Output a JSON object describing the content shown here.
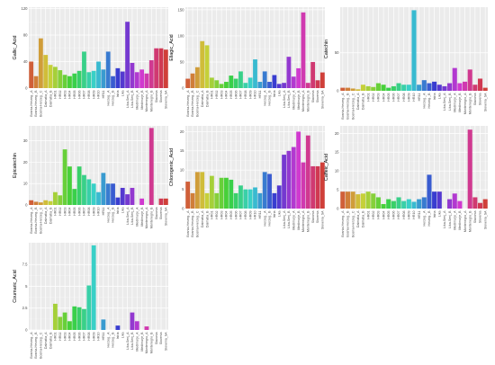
{
  "categories": [
    "Bosnia-Herzeg._A",
    "Bosnia-Herzeg._B",
    "Bosnia-Herzeg._C",
    "Dalmatia_A",
    "Dalmatia_B",
    "HR01",
    "HR02",
    "HR03",
    "HR04",
    "HR05",
    "HR06",
    "HR07",
    "HR08",
    "HR09",
    "HR10",
    "HR11",
    "Herzeg._A",
    "Herzeg._B",
    "Istria",
    "Lika",
    "Lika-Senj_A",
    "Lika-Senj_B",
    "Medimurje_A",
    "Medimurje_B",
    "Montenegro_A",
    "Montenegro_B",
    "Slavonia",
    "Slovenia",
    "Slovenia_SA"
  ],
  "chart_data": [
    {
      "type": "bar",
      "ylabel": "Gallic_Acid",
      "yticks": [
        0,
        40,
        80,
        120
      ],
      "ylim": [
        0,
        122
      ],
      "values": [
        40,
        18,
        75,
        50,
        35,
        32,
        27,
        20,
        18,
        22,
        26,
        55,
        24,
        26,
        40,
        28,
        55,
        18,
        30,
        25,
        100,
        38,
        24,
        28,
        22,
        42,
        60,
        60,
        58
      ]
    },
    {
      "type": "bar",
      "ylabel": "Ellagic_Acid",
      "yticks": [
        0,
        50,
        100,
        150
      ],
      "ylim": [
        0,
        155
      ],
      "values": [
        18,
        28,
        40,
        90,
        82,
        20,
        15,
        8,
        12,
        24,
        18,
        32,
        10,
        20,
        55,
        12,
        32,
        12,
        25,
        8,
        10,
        60,
        22,
        38,
        145,
        10,
        50,
        15,
        30
      ]
    },
    {
      "type": "bar",
      "ylabel": "Catechin",
      "yticks": [
        0,
        50
      ],
      "ylim": [
        0,
        110
      ],
      "values": [
        4,
        4,
        3,
        2,
        8,
        6,
        5,
        10,
        8,
        4,
        6,
        10,
        8,
        8,
        106,
        8,
        14,
        10,
        12,
        8,
        6,
        10,
        30,
        10,
        12,
        28,
        8,
        16,
        4
      ]
    },
    {
      "type": "bar",
      "ylabel": "Epicatechin",
      "yticks": [
        0,
        10,
        20,
        30
      ],
      "ylim": [
        0,
        37
      ],
      "values": [
        2.2,
        1.5,
        1.2,
        2.2,
        1.8,
        6,
        4.5,
        26,
        18,
        7.5,
        18,
        14,
        12,
        10,
        6,
        15,
        10,
        10,
        3.5,
        8,
        5,
        8,
        0,
        3,
        0,
        36,
        0,
        3,
        3
      ]
    },
    {
      "type": "bar",
      "ylabel": "Chlorogenic_Acid",
      "yticks": [
        0,
        5,
        10,
        15,
        20
      ],
      "ylim": [
        0,
        21.5
      ],
      "values": [
        7,
        4,
        9.5,
        9.5,
        4,
        8.5,
        4,
        8,
        8,
        7.5,
        4,
        6,
        5,
        5,
        5.5,
        4,
        9.5,
        9,
        4,
        6,
        14,
        15,
        16,
        20,
        12,
        19,
        11,
        11,
        12
      ]
    },
    {
      "type": "bar",
      "ylabel": "Caffeic_Acid",
      "yticks": [
        0,
        5,
        10,
        15,
        20
      ],
      "ylim": [
        0,
        22
      ],
      "values": [
        4.5,
        4.5,
        4.5,
        3.8,
        4,
        4.5,
        4,
        3,
        1.2,
        2.5,
        2,
        3,
        2,
        2.5,
        1.8,
        2.5,
        3,
        9,
        4.5,
        4.5,
        0,
        2.5,
        4,
        2,
        0,
        21,
        3,
        1.5,
        2.5
      ]
    },
    {
      "type": "bar",
      "ylabel": "Coumaric_Acid",
      "yticks": [
        0.0,
        2.5,
        5.0,
        7.5
      ],
      "ylim": [
        0,
        10
      ],
      "values": [
        0,
        0,
        0,
        0,
        0,
        3,
        1.5,
        2,
        1,
        2.7,
        2.6,
        2.4,
        5.1,
        9.7,
        0,
        1.2,
        0,
        0,
        0.5,
        0,
        0,
        2,
        1,
        0,
        0.4,
        0,
        0,
        0,
        0
      ]
    }
  ]
}
